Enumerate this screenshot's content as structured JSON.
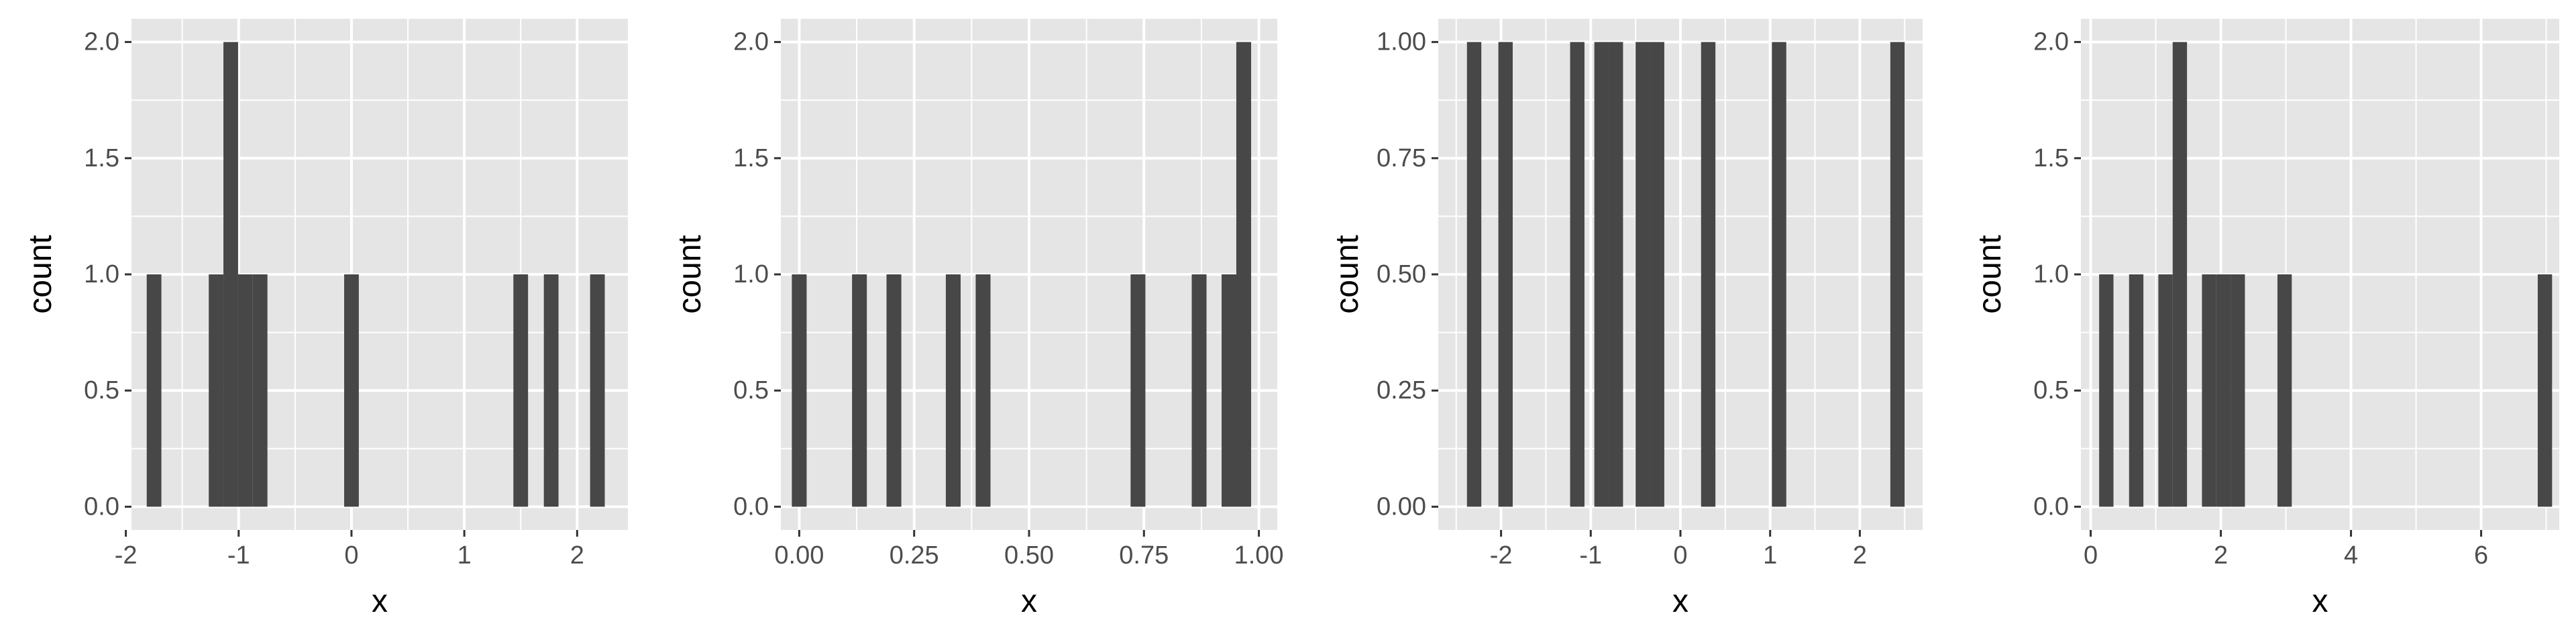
{
  "colors": {
    "panel": "#e5e5e5",
    "grid": "#ffffff",
    "bar": "#474747",
    "tick_text": "#4d4d4d",
    "title_text": "#000000"
  },
  "chart_data": [
    {
      "type": "bar",
      "xlabel": "x",
      "ylabel": "count",
      "xlim": [
        -1.95,
        2.45
      ],
      "ylim": [
        -0.1,
        2.1
      ],
      "x_ticks": [
        -2,
        -1,
        0,
        1,
        2
      ],
      "x_tick_labels": [
        "-2",
        "-1",
        "0",
        "1",
        "2"
      ],
      "y_ticks": [
        0,
        0.5,
        1,
        1.5,
        2
      ],
      "y_tick_labels": [
        "0.0",
        "0.5",
        "1.0",
        "1.5",
        "2.0"
      ],
      "bar_width": 0.13,
      "bars": [
        {
          "x": -1.75,
          "count": 1
        },
        {
          "x": -1.2,
          "count": 1
        },
        {
          "x": -1.07,
          "count": 2
        },
        {
          "x": -0.94,
          "count": 1
        },
        {
          "x": -0.81,
          "count": 1
        },
        {
          "x": 0.0,
          "count": 1
        },
        {
          "x": 1.5,
          "count": 1
        },
        {
          "x": 1.77,
          "count": 1
        },
        {
          "x": 2.18,
          "count": 1
        }
      ]
    },
    {
      "type": "bar",
      "xlabel": "x",
      "ylabel": "count",
      "xlim": [
        -0.04,
        1.04
      ],
      "ylim": [
        -0.1,
        2.1
      ],
      "x_ticks": [
        0,
        0.25,
        0.5,
        0.75,
        1
      ],
      "x_tick_labels": [
        "0.00",
        "0.25",
        "0.50",
        "0.75",
        "1.00"
      ],
      "y_ticks": [
        0,
        0.5,
        1,
        1.5,
        2
      ],
      "y_tick_labels": [
        "0.0",
        "0.5",
        "1.0",
        "1.5",
        "2.0"
      ],
      "bar_width": 0.0322,
      "bars": [
        {
          "x": 0.0,
          "count": 1
        },
        {
          "x": 0.131,
          "count": 1
        },
        {
          "x": 0.206,
          "count": 1
        },
        {
          "x": 0.335,
          "count": 1
        },
        {
          "x": 0.4,
          "count": 1
        },
        {
          "x": 0.737,
          "count": 1
        },
        {
          "x": 0.87,
          "count": 1
        },
        {
          "x": 0.935,
          "count": 1
        },
        {
          "x": 0.967,
          "count": 2
        }
      ]
    },
    {
      "type": "bar",
      "xlabel": "x",
      "ylabel": "count",
      "xlim": [
        -2.7,
        2.7
      ],
      "ylim": [
        -0.05,
        1.05
      ],
      "x_ticks": [
        -2,
        -1,
        0,
        1,
        2
      ],
      "x_tick_labels": [
        "-2",
        "-1",
        "0",
        "1",
        "2"
      ],
      "y_ticks": [
        0,
        0.25,
        0.5,
        0.75,
        1
      ],
      "y_tick_labels": [
        "0.00",
        "0.25",
        "0.50",
        "0.75",
        "1.00"
      ],
      "bar_width": 0.16,
      "bars": [
        {
          "x": -2.3,
          "count": 1
        },
        {
          "x": -1.95,
          "count": 1
        },
        {
          "x": -1.15,
          "count": 1
        },
        {
          "x": -0.88,
          "count": 1
        },
        {
          "x": -0.72,
          "count": 1
        },
        {
          "x": -0.42,
          "count": 1
        },
        {
          "x": -0.26,
          "count": 1
        },
        {
          "x": 0.31,
          "count": 1
        },
        {
          "x": 1.1,
          "count": 1
        },
        {
          "x": 2.42,
          "count": 1
        }
      ]
    },
    {
      "type": "bar",
      "xlabel": "x",
      "ylabel": "count",
      "xlim": [
        -0.15,
        7.2
      ],
      "ylim": [
        -0.1,
        2.1
      ],
      "x_ticks": [
        0,
        2,
        4,
        6
      ],
      "x_tick_labels": [
        "0",
        "2",
        "4",
        "6"
      ],
      "y_ticks": [
        0,
        0.5,
        1,
        1.5,
        2
      ],
      "y_tick_labels": [
        "0.0",
        "0.5",
        "1.0",
        "1.5",
        "2.0"
      ],
      "bar_width": 0.22,
      "bars": [
        {
          "x": 0.24,
          "count": 1
        },
        {
          "x": 0.7,
          "count": 1
        },
        {
          "x": 1.15,
          "count": 1
        },
        {
          "x": 1.37,
          "count": 2
        },
        {
          "x": 1.82,
          "count": 1
        },
        {
          "x": 2.04,
          "count": 1
        },
        {
          "x": 2.26,
          "count": 1
        },
        {
          "x": 2.98,
          "count": 1
        },
        {
          "x": 6.98,
          "count": 1
        }
      ]
    }
  ]
}
